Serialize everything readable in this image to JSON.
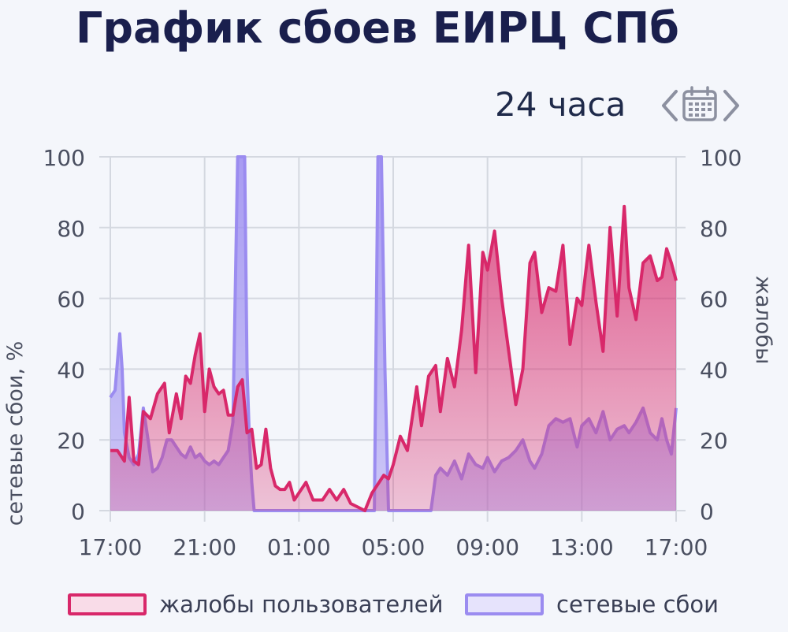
{
  "header": {
    "title": "График сбоев ЕИРЦ СПб",
    "period_label": "24 часа"
  },
  "colors": {
    "complaints": "#d8286a",
    "network": "#9b8cf0",
    "grid": "#d4d8e0",
    "axis_text": "#4a4f60"
  },
  "icons": {
    "prev": "chevron-left-icon",
    "calendar": "calendar-icon",
    "next": "chevron-right-icon"
  },
  "chart_data": {
    "type": "area",
    "ylabel_left": "сетевые сбои, %",
    "ylabel_right": "жалобы",
    "ylim": [
      0,
      100
    ],
    "yticks": [
      0,
      20,
      40,
      60,
      80,
      100
    ],
    "xticks": [
      "17:00",
      "21:00",
      "01:00",
      "05:00",
      "09:00",
      "13:00",
      "17:00"
    ],
    "x_range_hours": [
      0,
      24
    ],
    "grid": true,
    "legend_position": "bottom",
    "series": [
      {
        "name": "жалобы пользователей",
        "x": [
          0,
          0.3,
          0.6,
          0.8,
          1,
          1.2,
          1.4,
          1.7,
          2,
          2.3,
          2.5,
          2.8,
          3,
          3.2,
          3.4,
          3.6,
          3.8,
          4,
          4.2,
          4.4,
          4.6,
          4.8,
          5,
          5.2,
          5.4,
          5.6,
          5.8,
          6,
          6.2,
          6.4,
          6.6,
          6.8,
          7,
          7.2,
          7.4,
          7.6,
          7.8,
          8,
          8.3,
          8.6,
          9,
          9.3,
          9.6,
          9.9,
          10.2,
          10.5,
          10.8,
          11.1,
          11.3,
          11.6,
          11.8,
          12,
          12.3,
          12.6,
          13,
          13.2,
          13.5,
          13.8,
          14,
          14.3,
          14.6,
          14.9,
          15.2,
          15.5,
          15.8,
          16,
          16.3,
          16.6,
          16.9,
          17.2,
          17.5,
          17.8,
          18,
          18.3,
          18.6,
          18.9,
          19.2,
          19.5,
          19.8,
          20,
          20.3,
          20.6,
          20.9,
          21.2,
          21.5,
          21.8,
          22,
          22.3,
          22.6,
          22.9,
          23.2,
          23.4,
          23.6,
          23.8,
          24
        ],
        "values": [
          17,
          17,
          14,
          32,
          14,
          13,
          28,
          26,
          33,
          36,
          22,
          33,
          26,
          38,
          36,
          44,
          50,
          28,
          40,
          35,
          33,
          34,
          27,
          27,
          35,
          37,
          22,
          23,
          12,
          13,
          23,
          12,
          7,
          6,
          6,
          8,
          3,
          5,
          8,
          3,
          3,
          6,
          3,
          6,
          2,
          1,
          0,
          5,
          7,
          10,
          9,
          13,
          21,
          17,
          35,
          24,
          38,
          41,
          28,
          43,
          35,
          51,
          75,
          39,
          73,
          68,
          79,
          60,
          45,
          30,
          40,
          70,
          73,
          56,
          63,
          62,
          75,
          47,
          60,
          58,
          75,
          59,
          45,
          80,
          55,
          86,
          63,
          54,
          70,
          72,
          65,
          66,
          74,
          70,
          65
        ],
        "color": "#d8286a"
      },
      {
        "name": "сетевые сбои",
        "x": [
          0,
          0.2,
          0.4,
          0.5,
          0.6,
          0.8,
          1,
          1.2,
          1.4,
          1.6,
          1.8,
          2,
          2.2,
          2.4,
          2.6,
          2.8,
          3,
          3.2,
          3.4,
          3.6,
          3.8,
          4,
          4.2,
          4.4,
          4.6,
          4.8,
          5,
          5.2,
          5.4,
          5.6,
          5.7,
          5.8,
          5.9,
          6,
          6.1,
          6.3,
          6.5,
          6.7,
          6.8,
          7,
          8,
          9,
          10,
          11,
          11.2,
          11.35,
          11.5,
          11.65,
          11.8,
          12,
          13,
          13.5,
          13.6,
          13.8,
          14,
          14.3,
          14.6,
          14.9,
          15.2,
          15.5,
          15.8,
          16,
          16.3,
          16.6,
          16.9,
          17.2,
          17.5,
          17.8,
          18,
          18.3,
          18.6,
          18.9,
          19.2,
          19.5,
          19.8,
          20,
          20.3,
          20.6,
          20.9,
          21.2,
          21.5,
          21.8,
          22,
          22.3,
          22.6,
          22.9,
          23.2,
          23.4,
          23.6,
          23.8,
          24
        ],
        "values": [
          32,
          34,
          50,
          40,
          22,
          15,
          13,
          16,
          29,
          20,
          11,
          12,
          15,
          20,
          20,
          18,
          16,
          15,
          18,
          15,
          16,
          14,
          13,
          14,
          13,
          15,
          17,
          25,
          100,
          100,
          100,
          40,
          20,
          8,
          0,
          0,
          0,
          0,
          0,
          0,
          0,
          0,
          0,
          0,
          0,
          100,
          100,
          40,
          0,
          0,
          0,
          0,
          0,
          10,
          12,
          10,
          14,
          9,
          16,
          13,
          12,
          15,
          11,
          14,
          15,
          17,
          20,
          14,
          12,
          16,
          24,
          26,
          25,
          26,
          18,
          24,
          26,
          22,
          28,
          20,
          23,
          24,
          22,
          25,
          29,
          22,
          20,
          26,
          20,
          16,
          29
        ],
        "color": "#9b8cf0"
      }
    ]
  }
}
